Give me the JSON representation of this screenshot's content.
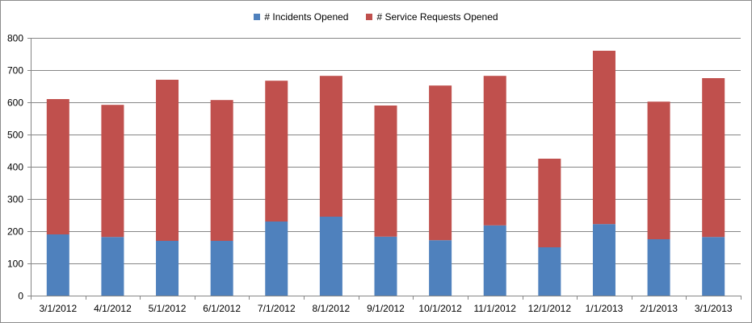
{
  "colors": {
    "incidents": "#4F81BD",
    "service_requests": "#C0504D",
    "grid": "#868686",
    "axis": "#868686"
  },
  "chart_data": {
    "type": "bar",
    "stacked": true,
    "categories": [
      "3/1/2012",
      "4/1/2012",
      "5/1/2012",
      "6/1/2012",
      "7/1/2012",
      "8/1/2012",
      "9/1/2012",
      "10/1/2012",
      "11/1/2012",
      "12/1/2012",
      "1/1/2013",
      "2/1/2013",
      "3/1/2013"
    ],
    "series": [
      {
        "name": "# Incidents Opened",
        "values": [
          190,
          182,
          170,
          170,
          230,
          245,
          183,
          172,
          218,
          150,
          222,
          175,
          182
        ]
      },
      {
        "name": "# Service Requests Opened",
        "values": [
          420,
          410,
          500,
          437,
          437,
          437,
          407,
          480,
          464,
          275,
          538,
          427,
          493
        ]
      }
    ],
    "ylim": [
      0,
      800
    ],
    "yticks": [
      "0",
      "100",
      "200",
      "300",
      "400",
      "500",
      "600",
      "700",
      "800"
    ],
    "grid": true,
    "legend_position": "top"
  }
}
